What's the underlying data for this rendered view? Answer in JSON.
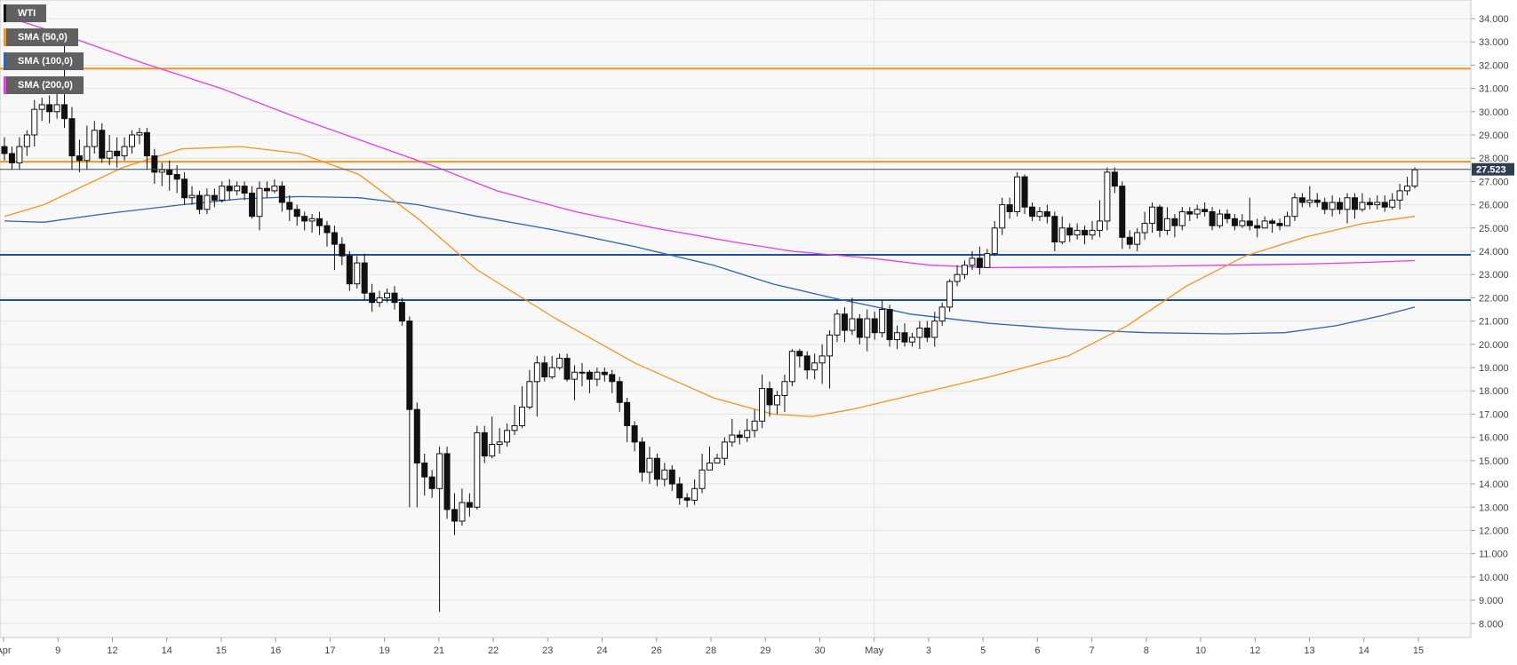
{
  "chart_data": {
    "type": "candlestick",
    "instrument": "WTI",
    "ylim": [
      7.4,
      34.8
    ],
    "y_ticks": [
      "34.000",
      "33.000",
      "32.000",
      "31.000",
      "30.000",
      "29.000",
      "28.000",
      "27.000",
      "26.000",
      "25.000",
      "24.000",
      "23.000",
      "22.000",
      "21.000",
      "20.000",
      "19.000",
      "18.000",
      "17.000",
      "16.000",
      "15.000",
      "14.000",
      "13.000",
      "12.000",
      "11.000",
      "10.000",
      "9.000",
      "8.000"
    ],
    "x_ticks": [
      "Apr",
      "9",
      "12",
      "14",
      "15",
      "16",
      "17",
      "19",
      "21",
      "22",
      "23",
      "24",
      "26",
      "28",
      "29",
      "30",
      "May",
      "3",
      "5",
      "6",
      "7",
      "8",
      "10",
      "12",
      "13",
      "14",
      "15"
    ],
    "last_price": "27.523",
    "horizontal_levels": [
      {
        "value": 31.85,
        "color": "#f7931e"
      },
      {
        "value": 27.85,
        "color": "#f7931e"
      },
      {
        "value": 23.85,
        "color": "#1f4e9a"
      },
      {
        "value": 21.9,
        "color": "#1f4e9a"
      }
    ],
    "sma_legend": [
      {
        "label": "SMA (50,0)",
        "color": "#f7931e"
      },
      {
        "label": "SMA (100,0)",
        "color": "#2c65b7"
      },
      {
        "label": "SMA (200,0)",
        "color": "#e83be8"
      }
    ],
    "sma50": [
      [
        0,
        25.5
      ],
      [
        0.1,
        26.0
      ],
      [
        0.2,
        26.8
      ],
      [
        0.3,
        27.6
      ],
      [
        0.45,
        28.4
      ],
      [
        0.6,
        28.5
      ],
      [
        0.75,
        28.2
      ],
      [
        0.9,
        27.3
      ],
      [
        1.05,
        25.4
      ],
      [
        1.2,
        23.2
      ],
      [
        1.4,
        21.1
      ],
      [
        1.6,
        19.2
      ],
      [
        1.8,
        17.7
      ],
      [
        1.95,
        17.0
      ],
      [
        2.05,
        16.9
      ],
      [
        2.15,
        17.2
      ],
      [
        2.3,
        17.8
      ],
      [
        2.5,
        18.6
      ],
      [
        2.7,
        19.5
      ],
      [
        2.85,
        20.8
      ],
      [
        3.0,
        22.5
      ],
      [
        3.15,
        23.8
      ],
      [
        3.3,
        24.6
      ],
      [
        3.45,
        25.2
      ],
      [
        3.58,
        25.5
      ]
    ],
    "sma100": [
      [
        0,
        25.3
      ],
      [
        0.1,
        25.25
      ],
      [
        0.25,
        25.6
      ],
      [
        0.45,
        26.0
      ],
      [
        0.6,
        26.25
      ],
      [
        0.75,
        26.35
      ],
      [
        0.9,
        26.3
      ],
      [
        1.05,
        26.0
      ],
      [
        1.2,
        25.5
      ],
      [
        1.4,
        24.9
      ],
      [
        1.6,
        24.2
      ],
      [
        1.8,
        23.4
      ],
      [
        1.95,
        22.6
      ],
      [
        2.1,
        22.0
      ],
      [
        2.3,
        21.3
      ],
      [
        2.5,
        20.9
      ],
      [
        2.7,
        20.65
      ],
      [
        2.9,
        20.5
      ],
      [
        3.1,
        20.45
      ],
      [
        3.25,
        20.5
      ],
      [
        3.38,
        20.8
      ],
      [
        3.5,
        21.25
      ],
      [
        3.58,
        21.6
      ]
    ],
    "sma200": [
      [
        0,
        34.1
      ],
      [
        0.15,
        33.3
      ],
      [
        0.35,
        32.1
      ],
      [
        0.55,
        31.0
      ],
      [
        0.75,
        29.7
      ],
      [
        0.95,
        28.5
      ],
      [
        1.1,
        27.6
      ],
      [
        1.25,
        26.6
      ],
      [
        1.45,
        25.7
      ],
      [
        1.65,
        25.0
      ],
      [
        1.85,
        24.4
      ],
      [
        2.0,
        24.0
      ],
      [
        2.2,
        23.7
      ],
      [
        2.35,
        23.4
      ],
      [
        2.5,
        23.3
      ],
      [
        2.7,
        23.32
      ],
      [
        2.9,
        23.35
      ],
      [
        3.1,
        23.4
      ],
      [
        3.3,
        23.45
      ],
      [
        3.45,
        23.52
      ],
      [
        3.58,
        23.6
      ]
    ],
    "candles": [
      [
        28.5,
        28.2,
        28.9,
        27.9
      ],
      [
        28.2,
        27.8,
        28.5,
        27.5
      ],
      [
        27.8,
        28.5,
        28.9,
        27.5
      ],
      [
        28.5,
        29.0,
        29.2,
        28.1
      ],
      [
        29.0,
        30.1,
        30.5,
        28.5
      ],
      [
        30.1,
        30.3,
        30.6,
        29.6
      ],
      [
        30.3,
        30.0,
        30.7,
        29.5
      ],
      [
        30.0,
        30.3,
        30.8,
        29.7
      ],
      [
        30.3,
        29.7,
        33.4,
        29.3
      ],
      [
        29.7,
        28.1,
        30.2,
        27.5
      ],
      [
        28.1,
        27.9,
        28.8,
        27.4
      ],
      [
        27.9,
        28.5,
        29.4,
        27.5
      ],
      [
        28.5,
        29.2,
        29.6,
        28.2
      ],
      [
        29.2,
        28.0,
        29.5,
        27.8
      ],
      [
        28.0,
        28.3,
        29.0,
        27.7
      ],
      [
        28.3,
        28.1,
        28.9,
        27.6
      ],
      [
        28.1,
        28.5,
        28.9,
        27.9
      ],
      [
        28.5,
        29.0,
        29.2,
        28.2
      ],
      [
        29.0,
        29.1,
        29.3,
        28.6
      ],
      [
        29.1,
        28.1,
        29.3,
        27.5
      ],
      [
        28.1,
        27.4,
        28.4,
        26.9
      ],
      [
        27.4,
        27.5,
        27.8,
        26.8
      ],
      [
        27.5,
        27.3,
        27.9,
        26.6
      ],
      [
        27.3,
        27.1,
        27.7,
        26.5
      ],
      [
        27.1,
        26.3,
        27.4,
        26.0
      ],
      [
        26.3,
        26.4,
        26.8,
        26.0
      ],
      [
        26.4,
        25.8,
        26.6,
        25.6
      ],
      [
        25.8,
        26.4,
        26.7,
        25.6
      ],
      [
        26.4,
        26.2,
        26.7,
        25.9
      ],
      [
        26.2,
        26.8,
        27.0,
        26.1
      ],
      [
        26.8,
        26.6,
        27.1,
        26.2
      ],
      [
        26.6,
        26.8,
        27.0,
        26.4
      ],
      [
        26.8,
        26.5,
        27.0,
        26.2
      ],
      [
        26.5,
        25.5,
        26.8,
        25.4
      ],
      [
        25.5,
        26.7,
        27.0,
        24.9
      ],
      [
        26.7,
        26.6,
        27.0,
        26.3
      ],
      [
        26.6,
        26.8,
        27.1,
        26.5
      ],
      [
        26.8,
        26.1,
        27.0,
        25.7
      ],
      [
        26.1,
        25.8,
        26.4,
        25.3
      ],
      [
        25.8,
        25.5,
        26.0,
        25.1
      ],
      [
        25.5,
        25.3,
        25.7,
        24.9
      ],
      [
        25.3,
        25.4,
        25.6,
        24.8
      ],
      [
        25.4,
        25.1,
        25.7,
        24.7
      ],
      [
        25.1,
        24.8,
        25.3,
        24.2
      ],
      [
        24.8,
        24.3,
        25.1,
        23.2
      ],
      [
        24.3,
        23.8,
        24.6,
        23.4
      ],
      [
        23.8,
        22.6,
        24.0,
        22.3
      ],
      [
        22.6,
        23.5,
        23.8,
        22.4
      ],
      [
        23.5,
        22.2,
        23.9,
        21.9
      ],
      [
        22.2,
        21.8,
        22.6,
        21.4
      ],
      [
        21.8,
        22.0,
        22.3,
        21.6
      ],
      [
        22.0,
        22.2,
        22.4,
        21.8
      ],
      [
        22.2,
        21.8,
        22.5,
        21.5
      ],
      [
        21.8,
        21.0,
        22.0,
        20.8
      ],
      [
        21.0,
        17.2,
        21.2,
        13.0
      ],
      [
        17.2,
        14.9,
        17.5,
        13.0
      ],
      [
        14.9,
        14.3,
        15.3,
        13.5
      ],
      [
        14.3,
        13.8,
        14.6,
        13.4
      ],
      [
        13.8,
        15.3,
        15.6,
        8.5
      ],
      [
        15.3,
        12.9,
        15.6,
        12.5
      ],
      [
        12.9,
        12.4,
        13.6,
        11.8
      ],
      [
        12.4,
        13.2,
        13.8,
        12.2
      ],
      [
        13.2,
        13.0,
        13.6,
        12.6
      ],
      [
        13.0,
        16.2,
        16.5,
        12.9
      ],
      [
        16.2,
        15.2,
        16.5,
        14.9
      ],
      [
        15.2,
        15.7,
        16.9,
        15.1
      ],
      [
        15.7,
        15.8,
        16.4,
        15.3
      ],
      [
        15.8,
        16.3,
        16.6,
        15.6
      ],
      [
        16.3,
        16.5,
        17.4,
        16.1
      ],
      [
        16.5,
        17.3,
        18.2,
        16.4
      ],
      [
        17.3,
        18.4,
        18.9,
        17.2
      ],
      [
        18.4,
        19.2,
        19.5,
        16.9
      ],
      [
        19.2,
        18.6,
        19.5,
        18.4
      ],
      [
        18.6,
        19.0,
        19.5,
        18.5
      ],
      [
        19.0,
        19.4,
        19.6,
        18.9
      ],
      [
        19.4,
        18.5,
        19.6,
        18.4
      ],
      [
        18.5,
        18.8,
        19.1,
        17.6
      ],
      [
        18.8,
        18.8,
        19.2,
        18.2
      ],
      [
        18.8,
        18.5,
        18.9,
        17.9
      ],
      [
        18.5,
        18.8,
        19.0,
        18.2
      ],
      [
        18.8,
        18.7,
        19.0,
        18.4
      ],
      [
        18.7,
        18.4,
        18.9,
        17.9
      ],
      [
        18.4,
        17.5,
        18.6,
        17.1
      ],
      [
        17.5,
        16.5,
        17.7,
        15.8
      ],
      [
        16.5,
        15.8,
        16.7,
        15.4
      ],
      [
        15.8,
        14.5,
        16.0,
        14.1
      ],
      [
        14.5,
        15.1,
        15.6,
        14.0
      ],
      [
        15.1,
        14.2,
        15.3,
        13.9
      ],
      [
        14.2,
        14.6,
        14.9,
        13.9
      ],
      [
        14.6,
        14.0,
        14.8,
        13.7
      ],
      [
        14.0,
        13.4,
        14.3,
        13.1
      ],
      [
        13.4,
        13.3,
        13.6,
        13.0
      ],
      [
        13.3,
        13.8,
        14.2,
        13.1
      ],
      [
        13.8,
        14.6,
        15.3,
        13.6
      ],
      [
        14.6,
        14.9,
        15.6,
        14.6
      ],
      [
        14.9,
        15.1,
        15.3,
        14.9
      ],
      [
        15.1,
        15.8,
        16.0,
        14.8
      ],
      [
        15.8,
        16.1,
        16.8,
        15.6
      ],
      [
        16.1,
        16.0,
        16.3,
        15.7
      ],
      [
        16.0,
        16.3,
        16.8,
        15.8
      ],
      [
        16.3,
        16.7,
        17.2,
        16.0
      ],
      [
        16.7,
        18.1,
        18.7,
        16.4
      ],
      [
        18.1,
        17.4,
        18.4,
        16.9
      ],
      [
        17.4,
        17.8,
        18.0,
        17.0
      ],
      [
        17.8,
        18.4,
        18.7,
        17.1
      ],
      [
        18.4,
        19.7,
        19.8,
        18.2
      ],
      [
        19.7,
        19.5,
        19.8,
        19.0
      ],
      [
        19.5,
        18.9,
        19.7,
        18.5
      ],
      [
        18.9,
        19.2,
        19.6,
        18.5
      ],
      [
        19.2,
        19.5,
        20.0,
        18.3
      ],
      [
        19.5,
        20.4,
        20.6,
        18.1
      ],
      [
        20.4,
        21.3,
        21.5,
        20.1
      ],
      [
        21.3,
        20.6,
        21.6,
        20.1
      ],
      [
        20.6,
        21.1,
        22.0,
        20.4
      ],
      [
        21.1,
        20.3,
        21.3,
        20.0
      ],
      [
        20.3,
        21.1,
        21.5,
        19.7
      ],
      [
        21.1,
        20.5,
        21.4,
        20.2
      ],
      [
        20.5,
        21.5,
        21.9,
        20.3
      ],
      [
        21.5,
        20.2,
        21.7,
        19.9
      ],
      [
        20.2,
        20.5,
        20.8,
        19.8
      ],
      [
        20.5,
        20.1,
        20.9,
        19.9
      ],
      [
        20.1,
        20.3,
        20.5,
        19.9
      ],
      [
        20.3,
        20.7,
        21.0,
        19.8
      ],
      [
        20.7,
        20.3,
        21.0,
        20.1
      ],
      [
        20.3,
        21.0,
        21.4,
        19.9
      ],
      [
        21.0,
        21.6,
        21.8,
        20.8
      ],
      [
        21.6,
        22.7,
        22.8,
        21.4
      ],
      [
        22.7,
        23.0,
        23.4,
        22.5
      ],
      [
        23.0,
        23.4,
        23.6,
        22.8
      ],
      [
        23.4,
        23.7,
        24.0,
        23.2
      ],
      [
        23.7,
        23.3,
        24.2,
        23.0
      ],
      [
        23.3,
        23.9,
        24.1,
        23.3
      ],
      [
        23.9,
        25.0,
        25.3,
        23.8
      ],
      [
        25.0,
        26.0,
        26.3,
        24.7
      ],
      [
        26.0,
        25.7,
        26.3,
        25.4
      ],
      [
        25.7,
        27.2,
        27.4,
        25.5
      ],
      [
        27.2,
        25.9,
        27.3,
        25.6
      ],
      [
        25.9,
        25.5,
        26.1,
        25.3
      ],
      [
        25.5,
        25.7,
        25.9,
        25.3
      ],
      [
        25.7,
        25.5,
        26.0,
        25.2
      ],
      [
        25.5,
        24.4,
        25.7,
        24.0
      ],
      [
        24.4,
        25.0,
        25.5,
        24.3
      ],
      [
        25.0,
        24.7,
        25.2,
        24.4
      ],
      [
        24.7,
        24.9,
        25.2,
        24.5
      ],
      [
        24.9,
        24.7,
        25.1,
        24.3
      ],
      [
        24.7,
        24.9,
        25.3,
        24.5
      ],
      [
        24.9,
        25.3,
        26.2,
        24.6
      ],
      [
        25.3,
        27.4,
        27.6,
        24.9
      ],
      [
        27.4,
        26.8,
        27.6,
        26.5
      ],
      [
        26.8,
        24.6,
        27.0,
        24.1
      ],
      [
        24.6,
        24.3,
        24.9,
        24.1
      ],
      [
        24.3,
        24.8,
        25.0,
        24.0
      ],
      [
        24.8,
        25.2,
        25.7,
        24.5
      ],
      [
        25.2,
        25.9,
        26.1,
        24.8
      ],
      [
        25.9,
        24.9,
        26.0,
        24.6
      ],
      [
        24.9,
        25.4,
        25.9,
        24.7
      ],
      [
        25.4,
        25.1,
        25.6,
        24.6
      ],
      [
        25.1,
        25.7,
        25.9,
        24.9
      ],
      [
        25.7,
        25.6,
        25.9,
        25.3
      ],
      [
        25.6,
        25.8,
        26.0,
        25.4
      ],
      [
        25.8,
        25.7,
        26.1,
        25.5
      ],
      [
        25.7,
        25.1,
        25.9,
        24.9
      ],
      [
        25.1,
        25.6,
        25.8,
        25.0
      ],
      [
        25.6,
        25.4,
        25.8,
        25.2
      ],
      [
        25.4,
        25.1,
        25.6,
        24.9
      ],
      [
        25.1,
        25.3,
        25.6,
        25.0
      ],
      [
        25.3,
        25.1,
        26.3,
        24.9
      ],
      [
        25.1,
        25.0,
        25.4,
        24.6
      ],
      [
        25.0,
        25.3,
        25.5,
        25.1
      ],
      [
        25.3,
        25.2,
        25.4,
        24.8
      ],
      [
        25.2,
        25.1,
        25.4,
        24.9
      ],
      [
        25.1,
        25.5,
        25.7,
        25.1
      ],
      [
        25.5,
        26.3,
        26.5,
        25.3
      ],
      [
        26.3,
        26.1,
        26.5,
        25.9
      ],
      [
        26.1,
        26.2,
        26.8,
        25.9
      ],
      [
        26.2,
        26.1,
        26.5,
        25.9
      ],
      [
        26.1,
        25.8,
        26.3,
        25.6
      ],
      [
        25.8,
        26.1,
        26.4,
        25.5
      ],
      [
        26.1,
        25.8,
        26.3,
        25.6
      ],
      [
        25.8,
        26.3,
        26.5,
        25.2
      ],
      [
        26.3,
        25.8,
        26.5,
        25.4
      ],
      [
        25.8,
        26.1,
        26.5,
        25.7
      ],
      [
        26.1,
        26.0,
        26.3,
        25.8
      ],
      [
        26.0,
        26.1,
        26.4,
        25.8
      ],
      [
        26.1,
        25.9,
        26.4,
        25.7
      ],
      [
        25.9,
        26.2,
        26.5,
        25.8
      ],
      [
        26.2,
        26.6,
        26.9,
        25.8
      ],
      [
        26.6,
        26.8,
        27.2,
        26.4
      ],
      [
        26.8,
        27.5,
        27.6,
        26.7
      ]
    ]
  }
}
